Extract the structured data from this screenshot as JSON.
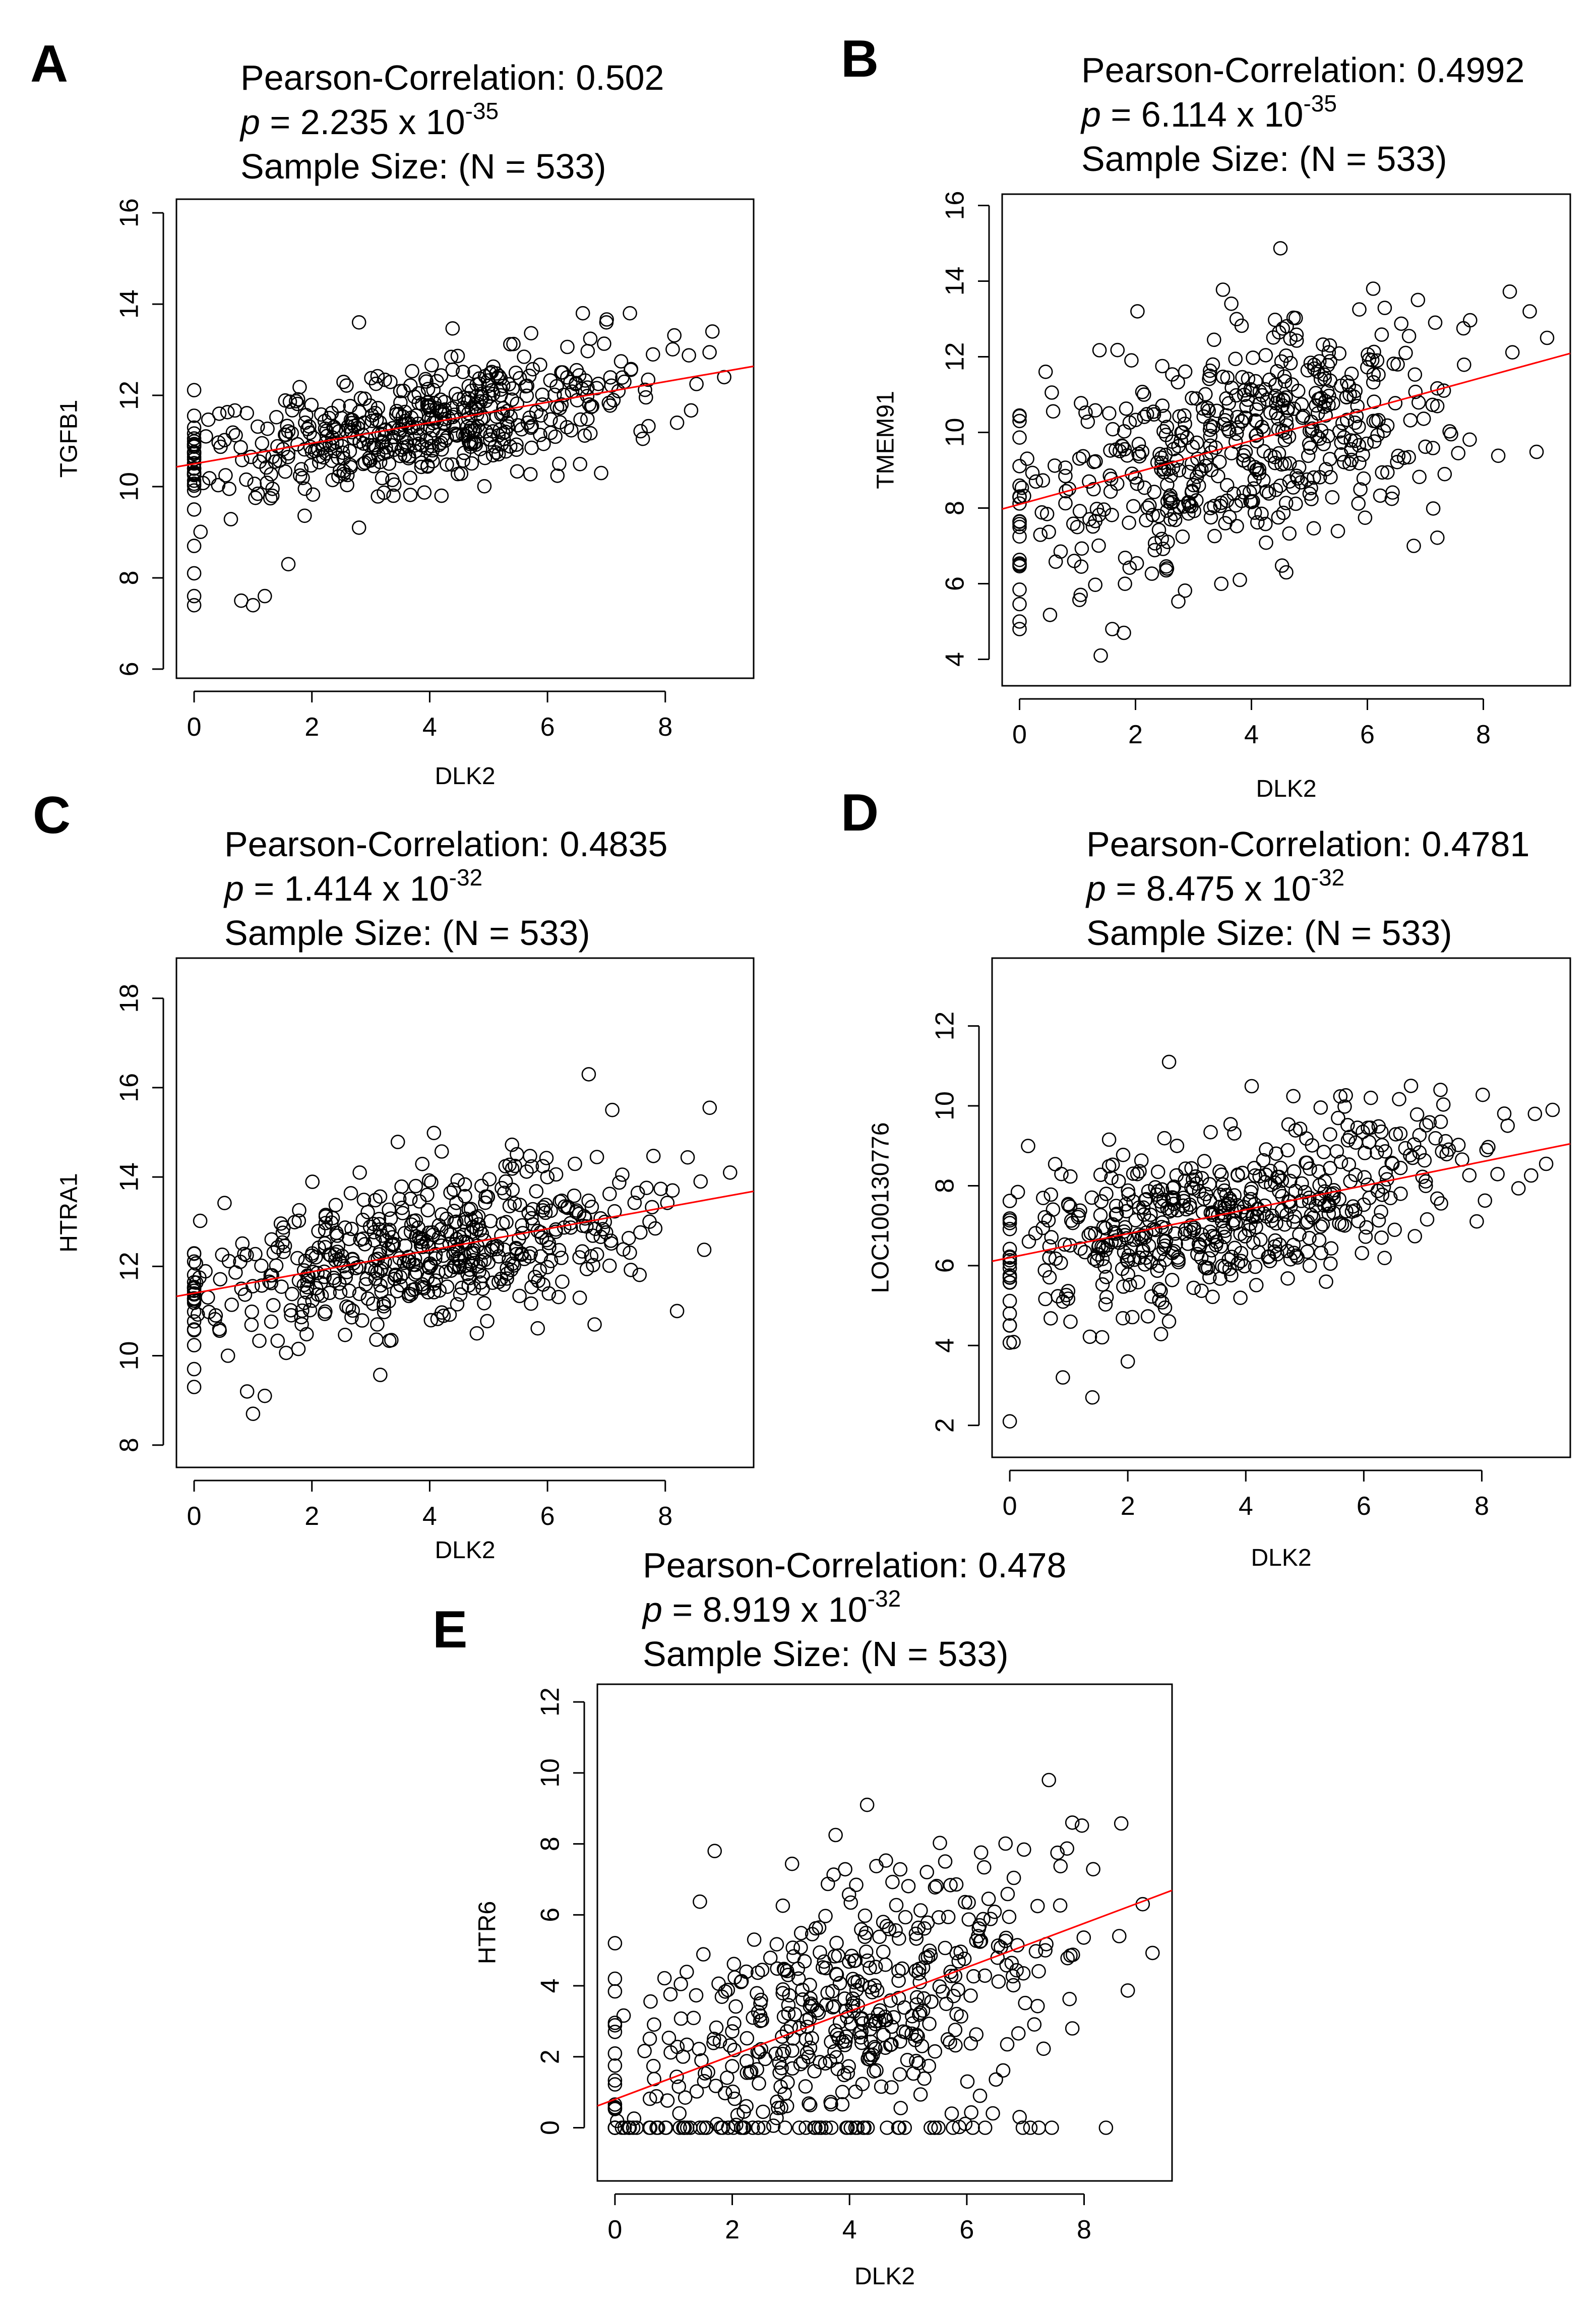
{
  "figure": {
    "panels": [
      {
        "letter": "A",
        "correlation_label": "Pearson-Correlation:",
        "correlation_value": "0.502",
        "p_label": "p",
        "p_mantissa": "= 2.235 x 10",
        "p_exponent": "-35",
        "sample_label": "Sample Size:",
        "sample_value": "(N = 533)"
      },
      {
        "letter": "B",
        "correlation_label": "Pearson-Correlation:",
        "correlation_value": "0.4992",
        "p_label": "p",
        "p_mantissa": "= 6.114 x 10",
        "p_exponent": "-35",
        "sample_label": "Sample Size:",
        "sample_value": "(N = 533)"
      },
      {
        "letter": "C",
        "correlation_label": "Pearson-Correlation:",
        "correlation_value": "0.4835",
        "p_label": "p",
        "p_mantissa": "= 1.414 x 10",
        "p_exponent": "-32",
        "sample_label": "Sample Size:",
        "sample_value": "(N = 533)"
      },
      {
        "letter": "D",
        "correlation_label": "Pearson-Correlation:",
        "correlation_value": "0.4781",
        "p_label": "p",
        "p_mantissa": "= 8.475 x 10",
        "p_exponent": "-32",
        "sample_label": "Sample Size:",
        "sample_value": "(N = 533)"
      },
      {
        "letter": "E",
        "correlation_label": "Pearson-Correlation:",
        "correlation_value": "0.478",
        "p_label": "p",
        "p_mantissa": "= 8.919 x 10",
        "p_exponent": "-32",
        "sample_label": "Sample Size:",
        "sample_value": "(N = 533)"
      }
    ]
  },
  "chart_data": [
    {
      "type": "scatter",
      "panel": "A",
      "xlabel": "DLK2",
      "ylabel": "TGFB1",
      "xlim": [
        -0.3,
        9.5
      ],
      "ylim": [
        5.8,
        16.3
      ],
      "xticks": [
        0,
        2,
        4,
        6,
        8
      ],
      "yticks": [
        6,
        8,
        10,
        12,
        14,
        16
      ],
      "n": 533,
      "x_mean": 3.9,
      "x_sd": 1.9,
      "residual_sd": 0.62,
      "point_color": "#000000",
      "fit_color": "#ff0000",
      "fit": {
        "intercept": 10.5,
        "slope": 0.225
      },
      "notable_points": [
        [
          0,
          7.4
        ],
        [
          0,
          7.6
        ],
        [
          0,
          8.1
        ],
        [
          0,
          8.7
        ],
        [
          0.8,
          7.5
        ],
        [
          1.0,
          7.4
        ],
        [
          1.2,
          7.6
        ],
        [
          1.6,
          8.3
        ],
        [
          2.8,
          13.6
        ],
        [
          6.6,
          13.8
        ],
        [
          7.0,
          13.6
        ],
        [
          7.4,
          13.8
        ],
        [
          8.8,
          13.4
        ],
        [
          9.0,
          12.4
        ],
        [
          8.2,
          11.4
        ],
        [
          6.2,
          10.5
        ],
        [
          4.2,
          9.8
        ],
        [
          2.8,
          9.1
        ]
      ]
    },
    {
      "type": "scatter",
      "panel": "B",
      "xlabel": "DLK2",
      "ylabel": "TMEM91",
      "xlim": [
        -0.3,
        9.5
      ],
      "ylim": [
        3.3,
        16.3
      ],
      "xticks": [
        0,
        2,
        4,
        6,
        8
      ],
      "yticks": [
        4,
        6,
        8,
        10,
        12,
        14,
        16
      ],
      "n": 533,
      "x_mean": 3.9,
      "x_sd": 1.9,
      "residual_sd": 1.45,
      "point_color": "#000000",
      "fit_color": "#ff0000",
      "fit": {
        "intercept": 8.1,
        "slope": 0.42
      },
      "notable_points": [
        [
          0,
          4.8
        ],
        [
          0,
          5.0
        ],
        [
          0,
          6.5
        ],
        [
          0,
          7.5
        ],
        [
          1.4,
          4.1
        ],
        [
          1.6,
          4.8
        ],
        [
          1.8,
          4.7
        ],
        [
          6.1,
          13.8
        ],
        [
          8.8,
          13.2
        ],
        [
          9.1,
          12.5
        ],
        [
          6.8,
          7.0
        ],
        [
          3.8,
          6.1
        ],
        [
          4.6,
          6.3
        ]
      ]
    },
    {
      "type": "scatter",
      "panel": "C",
      "xlabel": "DLK2",
      "ylabel": "HTRA1",
      "xlim": [
        -0.3,
        9.5
      ],
      "ylim": [
        7.5,
        18.9
      ],
      "xticks": [
        0,
        2,
        4,
        6,
        8
      ],
      "yticks": [
        8,
        10,
        12,
        14,
        16,
        18
      ],
      "n": 533,
      "x_mean": 3.9,
      "x_sd": 1.9,
      "residual_sd": 0.8,
      "point_color": "#000000",
      "fit_color": "#ff0000",
      "fit": {
        "intercept": 11.4,
        "slope": 0.24
      },
      "notable_points": [
        [
          0,
          9.3
        ],
        [
          0,
          9.7
        ],
        [
          0.9,
          9.2
        ],
        [
          1.0,
          8.7
        ],
        [
          1.2,
          9.1
        ],
        [
          6.7,
          16.3
        ],
        [
          7.1,
          15.5
        ],
        [
          8.6,
          13.9
        ],
        [
          9.1,
          14.1
        ],
        [
          8.2,
          11.0
        ],
        [
          6.8,
          10.7
        ],
        [
          4.8,
          10.5
        ]
      ]
    },
    {
      "type": "scatter",
      "panel": "D",
      "xlabel": "DLK2",
      "ylabel": "LOC100130776",
      "xlim": [
        -0.3,
        9.5
      ],
      "ylim": [
        1.2,
        13.7
      ],
      "xticks": [
        0,
        2,
        4,
        6,
        8
      ],
      "yticks": [
        2,
        4,
        6,
        8,
        10,
        12
      ],
      "n": 533,
      "x_mean": 3.9,
      "x_sd": 1.9,
      "residual_sd": 0.95,
      "point_color": "#000000",
      "fit_color": "#ff0000",
      "fit": {
        "intercept": 6.2,
        "slope": 0.3
      },
      "notable_points": [
        [
          0,
          2.1
        ],
        [
          0,
          4.5
        ],
        [
          0,
          4.8
        ],
        [
          1.4,
          2.7
        ],
        [
          0.9,
          3.2
        ],
        [
          2.0,
          3.6
        ],
        [
          2.7,
          11.1
        ],
        [
          6.8,
          10.5
        ],
        [
          7.3,
          10.4
        ],
        [
          8.9,
          9.8
        ],
        [
          9.2,
          9.9
        ],
        [
          6.3,
          6.7
        ]
      ]
    },
    {
      "type": "scatter",
      "panel": "E",
      "xlabel": "DLK2",
      "ylabel": "HTR6",
      "xlim": [
        -0.3,
        9.5
      ],
      "ylim": [
        -1.5,
        12.5
      ],
      "xticks": [
        0,
        2,
        4,
        6,
        8
      ],
      "yticks": [
        0,
        2,
        4,
        6,
        8,
        10,
        12
      ],
      "n": 533,
      "x_mean": 3.9,
      "x_sd": 1.9,
      "residual_sd": 1.9,
      "point_color": "#000000",
      "fit_color": "#ff0000",
      "fit": {
        "intercept": 0.8,
        "slope": 0.62
      },
      "floor_value": 0,
      "notable_points": [
        [
          0,
          5.2
        ],
        [
          0,
          4.2
        ],
        [
          1.7,
          7.8
        ],
        [
          4.3,
          9.1
        ],
        [
          7.4,
          9.8
        ],
        [
          7.8,
          8.6
        ],
        [
          9.0,
          6.3
        ],
        [
          8.6,
          5.4
        ],
        [
          7.8,
          2.8
        ],
        [
          6.9,
          0.3
        ]
      ]
    }
  ]
}
